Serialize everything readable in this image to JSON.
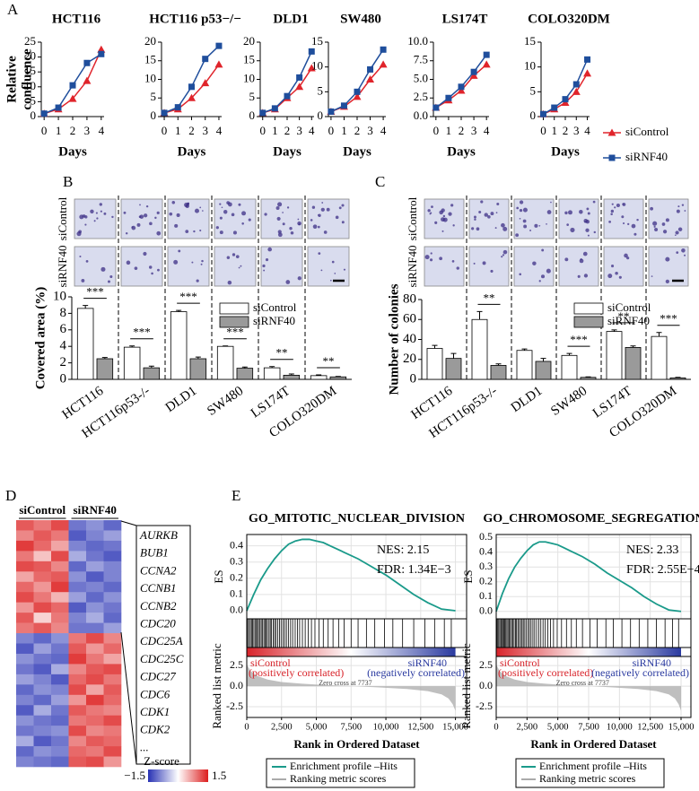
{
  "chart_data": [
    {
      "type": "line",
      "panel_label": "A",
      "x": [
        0,
        1,
        2,
        3,
        4
      ],
      "xlim": [
        -0.2,
        4.2
      ],
      "xticks": [
        0,
        1,
        2,
        3,
        4
      ],
      "xlabel": "Days",
      "ylabel_lines": [
        "Relative",
        "confluence"
      ],
      "legend": [
        {
          "name": "siControl",
          "color": "#e0242b",
          "marker": "triangle"
        },
        {
          "name": "siRNF40",
          "color": "#1f4e9c",
          "marker": "square"
        }
      ],
      "panels": [
        {
          "title": "HCT116",
          "ylim": [
            0,
            25
          ],
          "yticks": [
            0,
            5,
            10,
            15,
            20,
            25
          ],
          "series": [
            {
              "values": [
                1,
                2.5,
                6,
                12,
                22.5
              ]
            },
            {
              "values": [
                1,
                3,
                10.5,
                18,
                21
              ]
            }
          ]
        },
        {
          "title": "HCT116 p53−/−",
          "ylim": [
            0,
            20
          ],
          "yticks": [
            0,
            5,
            10,
            15,
            20
          ],
          "series": [
            {
              "values": [
                1,
                2,
                5,
                9,
                14
              ]
            },
            {
              "values": [
                1,
                2.5,
                8,
                15.5,
                19
              ]
            }
          ]
        },
        {
          "title": "DLD1",
          "ylim": [
            0,
            20
          ],
          "yticks": [
            0,
            5,
            10,
            15,
            20
          ],
          "series": [
            {
              "values": [
                1,
                2,
                5,
                8,
                13
              ]
            },
            {
              "values": [
                1,
                2.2,
                5.5,
                10.5,
                17.5
              ]
            }
          ]
        },
        {
          "title": "SW480",
          "ylim": [
            0,
            15
          ],
          "yticks": [
            0,
            5,
            10,
            15
          ],
          "series": [
            {
              "values": [
                1,
                2,
                4,
                7.5,
                10.5
              ]
            },
            {
              "values": [
                1,
                2.2,
                5,
                9.5,
                13.5
              ]
            }
          ]
        },
        {
          "title": "LS174T",
          "ylim": [
            0,
            10
          ],
          "yticks": [
            {
              "value": 0,
              "label": "0.0"
            },
            2.5,
            {
              "value": 5,
              "label": "5.0"
            },
            7.5,
            {
              "value": 10,
              "label": "10.0"
            }
          ],
          "series": [
            {
              "values": [
                1.2,
                2.2,
                3.5,
                5.5,
                7
              ]
            },
            {
              "values": [
                1.2,
                2.5,
                4,
                6,
                8.3
              ]
            }
          ]
        },
        {
          "title": "COLO320DM",
          "ylim": [
            0,
            15
          ],
          "yticks": [
            0,
            5,
            10,
            15
          ],
          "series": [
            {
              "values": [
                0.5,
                1.5,
                2.8,
                5,
                8.7
              ]
            },
            {
              "values": [
                0.5,
                1.8,
                3.5,
                6.5,
                11.5
              ]
            }
          ]
        }
      ]
    },
    {
      "type": "bar",
      "panel_label": "B",
      "ylabel": "Covered area (%)",
      "image_rows": [
        "siControl",
        "siRNF40"
      ],
      "categories": [
        "HCT116",
        "HCT116p53-/-",
        "DLD1",
        "SW480",
        "LS174T",
        "COLO320DM"
      ],
      "ylim": [
        0,
        10
      ],
      "yticks": [
        0,
        2,
        4,
        6,
        8,
        10
      ],
      "series": [
        {
          "name": "siControl",
          "color": "#ffffff",
          "values": [
            8.6,
            3.9,
            8.2,
            4.0,
            1.4,
            0.45
          ],
          "errors": [
            0.35,
            0.15,
            0.15,
            0.05,
            0.15,
            0.1
          ]
        },
        {
          "name": "siRNF40",
          "color": "#9a9a9a",
          "values": [
            2.5,
            1.4,
            2.5,
            1.35,
            0.5,
            0.3
          ],
          "errors": [
            0.15,
            0.2,
            0.2,
            0.15,
            0.15,
            0.05
          ]
        }
      ],
      "significance": [
        "***",
        "***",
        "***",
        "***",
        "**",
        "**"
      ]
    },
    {
      "type": "bar",
      "panel_label": "C",
      "ylabel": "Number of colonies",
      "image_rows": [
        "siControl",
        "siRNF40"
      ],
      "categories": [
        "HCT116",
        "HCT116p53-/-",
        "DLD1",
        "SW480",
        "LS174T",
        "COLO320DM"
      ],
      "ylim": [
        0,
        80
      ],
      "yticks": [
        0,
        20,
        40,
        60,
        80
      ],
      "series": [
        {
          "name": "siControl",
          "color": "#ffffff",
          "values": [
            31,
            60,
            29,
            24,
            48,
            43
          ],
          "errors": [
            3,
            8,
            1.5,
            2,
            1.5,
            4
          ]
        },
        {
          "name": "siRNF40",
          "color": "#9a9a9a",
          "values": [
            21,
            14,
            18,
            2,
            32,
            1.5
          ],
          "errors": [
            5,
            1.5,
            3,
            0.5,
            1.5,
            0.5
          ]
        }
      ],
      "significance": [
        null,
        "**",
        null,
        "***",
        "**",
        "***"
      ]
    },
    {
      "type": "heatmap",
      "panel_label": "D",
      "groups": [
        "siControl",
        "siRNF40"
      ],
      "genes": [
        "AURKB",
        "BUB1",
        "CCNA2",
        "CCNB1",
        "CCNB2",
        "CDC20",
        "CDC25A",
        "CDC25C",
        "CDC27",
        "CDC6",
        "CDK1",
        "CDK2",
        "..."
      ],
      "colorbar": {
        "label": "Z-score",
        "lim": [
          -1.5,
          1.5
        ],
        "ticks": [
          {
            "value": -1.5,
            "label": "−1.5"
          },
          1.5
        ]
      },
      "values": [
        [
          1.1,
          0.9,
          1.2,
          -1.0,
          -0.8,
          -1.1
        ],
        [
          0.8,
          1.1,
          0.9,
          -1.2,
          -0.9,
          -0.7
        ],
        [
          1.3,
          1.0,
          0.6,
          -0.9,
          -1.1,
          -1.0
        ],
        [
          0.9,
          0.4,
          1.2,
          -0.6,
          -1.0,
          -1.2
        ],
        [
          1.2,
          1.1,
          0.8,
          -1.1,
          -0.7,
          -0.9
        ],
        [
          0.6,
          1.0,
          1.1,
          -0.8,
          -1.2,
          -0.9
        ],
        [
          1.0,
          0.7,
          1.3,
          -1.0,
          -0.9,
          -1.1
        ],
        [
          1.2,
          0.9,
          0.5,
          -0.7,
          -1.1,
          -0.8
        ],
        [
          0.7,
          1.2,
          1.0,
          -1.2,
          -0.8,
          -1.0
        ],
        [
          1.1,
          0.3,
          0.9,
          -0.9,
          -0.6,
          -1.1
        ],
        [
          0.9,
          1.1,
          0.8,
          -1.0,
          -1.0,
          -0.7
        ],
        [
          -0.9,
          -1.1,
          -0.8,
          0.9,
          1.2,
          0.8
        ],
        [
          -1.2,
          -0.7,
          -1.0,
          1.1,
          0.7,
          1.0
        ],
        [
          -0.8,
          -1.0,
          -1.1,
          1.3,
          0.9,
          0.6
        ],
        [
          -1.0,
          -1.2,
          -0.6,
          0.8,
          1.1,
          1.2
        ],
        [
          -0.7,
          -0.9,
          -1.2,
          1.0,
          1.2,
          0.9
        ],
        [
          -1.1,
          -0.8,
          -0.9,
          1.2,
          0.6,
          1.1
        ],
        [
          -0.9,
          -1.1,
          -0.7,
          0.7,
          1.3,
          1.0
        ],
        [
          -1.2,
          -0.6,
          -1.0,
          1.1,
          0.9,
          0.8
        ],
        [
          -0.8,
          -1.0,
          -1.1,
          0.9,
          1.0,
          1.2
        ],
        [
          -1.0,
          -0.9,
          -0.8,
          1.2,
          0.8,
          0.9
        ],
        [
          -0.6,
          -1.2,
          -1.0,
          0.8,
          1.1,
          1.0
        ],
        [
          -1.1,
          -0.8,
          -0.9,
          1.0,
          0.9,
          1.2
        ],
        [
          -0.9,
          -1.0,
          -1.1,
          1.1,
          1.2,
          0.7
        ]
      ]
    },
    {
      "type": "gsea",
      "panel_label": "E",
      "title": "GO_MITOTIC_NUCLEAR_DIVISION",
      "nes": "NES: 2.15",
      "fdr": "FDR: 1.34E−3",
      "es_label": "ES",
      "metric_label": "Ranked list metric",
      "xlabel": "Rank in Ordered Dataset",
      "pos_label": "siControl",
      "pos_note": "(positively correlated)",
      "neg_label": "siRNF40",
      "neg_note": "(negatively correlated)",
      "zero_cross": "Zero cross at 7737",
      "xlim": [
        0,
        15800
      ],
      "xticks": [
        0,
        {
          "value": 2500,
          "label": "2,500"
        },
        {
          "value": 5000,
          "label": "5,000"
        },
        {
          "value": 7500,
          "label": "7,500"
        },
        {
          "value": 10000,
          "label": "10,000"
        },
        {
          "value": 12500,
          "label": "12,500"
        },
        {
          "value": 15000,
          "label": "15,000"
        }
      ],
      "es_ylim": [
        -0.05,
        0.47
      ],
      "es_yticks": [
        {
          "value": 0,
          "label": "0.0"
        },
        0.1,
        0.2,
        0.3,
        0.4
      ],
      "x": [
        0,
        500,
        1000,
        1500,
        2000,
        2500,
        3000,
        3500,
        4000,
        4500,
        5000,
        5500,
        6000,
        7000,
        8000,
        9000,
        10000,
        11000,
        12000,
        13000,
        14000,
        15000
      ],
      "es": [
        0,
        0.1,
        0.19,
        0.26,
        0.32,
        0.37,
        0.41,
        0.43,
        0.44,
        0.44,
        0.43,
        0.42,
        0.4,
        0.36,
        0.32,
        0.27,
        0.22,
        0.16,
        0.1,
        0.05,
        0.01,
        0
      ],
      "hits": [
        60,
        150,
        260,
        340,
        420,
        510,
        600,
        700,
        760,
        850,
        950,
        1040,
        1120,
        1230,
        1310,
        1400,
        1480,
        1600,
        1690,
        1780,
        1900,
        2000,
        2100,
        2230,
        2350,
        2470,
        2600,
        2720,
        2850,
        2990,
        3150,
        3300,
        3480,
        3650,
        3800,
        4000,
        4200,
        4420,
        4650,
        4900,
        5200,
        5500,
        5850,
        6200,
        6600,
        7000,
        7500,
        8000,
        8600,
        9200,
        9900,
        10500,
        11200,
        12000,
        12800,
        13500,
        14200,
        14700
      ],
      "metric_ylim": [
        -3.8,
        3.6
      ],
      "metric_yticks": [
        -2.5,
        {
          "value": 0,
          "label": "0.0"
        },
        2.5
      ],
      "metric_x": [
        0,
        300,
        800,
        1500,
        2500,
        4000,
        5500,
        7737,
        9500,
        11500,
        13000,
        14000,
        14500,
        14800,
        15000
      ],
      "metric": [
        2.6,
        1.8,
        1.2,
        0.8,
        0.5,
        0.3,
        0.15,
        0,
        -0.15,
        -0.35,
        -0.6,
        -1.0,
        -1.5,
        -2.2,
        -3.0
      ],
      "legend": [
        {
          "name": "Enrichment profile –Hits",
          "color": "#1a9a8a"
        },
        {
          "name": "Ranking metric scores",
          "color": "#aaaaaa"
        }
      ]
    },
    {
      "type": "gsea",
      "title": "GO_CHROMOSOME_SEGREGATION",
      "nes": "NES: 2.33",
      "fdr": "FDR: 2.55E−4",
      "es_label": "ES",
      "metric_label": "Ranked list metric",
      "xlabel": "Rank in Ordered Dataset",
      "pos_label": "siControl",
      "pos_note": "(positively correlated)",
      "neg_label": "siRNF40",
      "neg_note": "(negatively correlated)",
      "zero_cross": "Zero cross at 7737",
      "xlim": [
        0,
        15800
      ],
      "xticks": [
        0,
        {
          "value": 2500,
          "label": "2,500"
        },
        {
          "value": 5000,
          "label": "5,000"
        },
        {
          "value": 7500,
          "label": "7,500"
        },
        {
          "value": 10000,
          "label": "10,000"
        },
        {
          "value": 12500,
          "label": "12,500"
        },
        {
          "value": 15000,
          "label": "15,000"
        }
      ],
      "es_ylim": [
        -0.05,
        0.52
      ],
      "es_yticks": [
        {
          "value": 0,
          "label": "0.0"
        },
        0.1,
        0.2,
        0.3,
        0.4,
        0.5
      ],
      "x": [
        0,
        500,
        1000,
        1500,
        2000,
        2500,
        3000,
        3500,
        4000,
        4500,
        5000,
        5500,
        6000,
        7000,
        8000,
        9000,
        10000,
        11000,
        12000,
        13000,
        14000,
        15000
      ],
      "es": [
        0,
        0.12,
        0.22,
        0.3,
        0.36,
        0.41,
        0.45,
        0.47,
        0.47,
        0.46,
        0.45,
        0.43,
        0.41,
        0.37,
        0.32,
        0.26,
        0.21,
        0.16,
        0.1,
        0.05,
        0.01,
        0
      ],
      "hits": [
        40,
        120,
        200,
        290,
        380,
        450,
        530,
        620,
        690,
        780,
        870,
        960,
        1050,
        1150,
        1250,
        1340,
        1450,
        1560,
        1650,
        1760,
        1870,
        1990,
        2100,
        2200,
        2320,
        2450,
        2580,
        2700,
        2830,
        2980,
        3120,
        3280,
        3450,
        3620,
        3800,
        3980,
        4180,
        4400,
        4650,
        4950,
        5300,
        5700,
        6100,
        6500,
        7000,
        7600,
        8200,
        8900,
        9500,
        10200,
        10900,
        11600,
        12300,
        13000,
        13700,
        14300,
        14800
      ],
      "metric_ylim": [
        -3.8,
        3.6
      ],
      "metric_yticks": [
        -2.5,
        {
          "value": 0,
          "label": "0.0"
        },
        2.5
      ],
      "metric_x": [
        0,
        300,
        800,
        1500,
        2500,
        4000,
        5500,
        7737,
        9500,
        11500,
        13000,
        14000,
        14500,
        14800,
        15000
      ],
      "metric": [
        2.6,
        1.8,
        1.2,
        0.8,
        0.5,
        0.3,
        0.15,
        0,
        -0.15,
        -0.35,
        -0.6,
        -1.0,
        -1.5,
        -2.2,
        -3.0
      ],
      "legend": [
        {
          "name": "Enrichment profile –Hits",
          "color": "#1a9a8a"
        },
        {
          "name": "Ranking metric scores",
          "color": "#aaaaaa"
        }
      ]
    }
  ]
}
